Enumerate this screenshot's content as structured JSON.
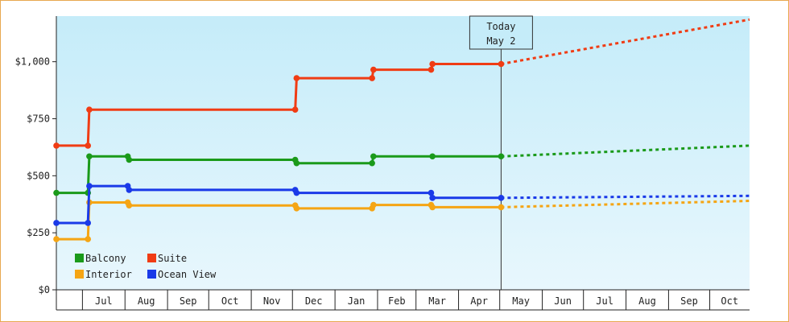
{
  "chart_data": {
    "type": "line",
    "step": true,
    "y_ticks": [
      {
        "value": 0,
        "label": "$0"
      },
      {
        "value": 250,
        "label": "$250"
      },
      {
        "value": 500,
        "label": "$500"
      },
      {
        "value": 750,
        "label": "$750"
      },
      {
        "value": 1000,
        "label": "$1,000"
      }
    ],
    "ylim": [
      0,
      1200
    ],
    "xlim": [
      "2022-06-12",
      "2023-10-30"
    ],
    "x_months": [
      {
        "start": "2022-06-12",
        "end": "2022-07-01",
        "label": ""
      },
      {
        "start": "2022-07-01",
        "end": "2022-08-01",
        "label": "Jul"
      },
      {
        "start": "2022-08-01",
        "end": "2022-09-01",
        "label": "Aug"
      },
      {
        "start": "2022-09-01",
        "end": "2022-10-01",
        "label": "Sep"
      },
      {
        "start": "2022-10-01",
        "end": "2022-11-01",
        "label": "Oct"
      },
      {
        "start": "2022-11-01",
        "end": "2022-12-01",
        "label": "Nov"
      },
      {
        "start": "2022-12-01",
        "end": "2023-01-01",
        "label": "Dec"
      },
      {
        "start": "2023-01-01",
        "end": "2023-02-01",
        "label": "Jan"
      },
      {
        "start": "2023-02-01",
        "end": "2023-03-01",
        "label": "Feb"
      },
      {
        "start": "2023-03-01",
        "end": "2023-04-01",
        "label": "Mar"
      },
      {
        "start": "2023-04-01",
        "end": "2023-05-01",
        "label": "Apr"
      },
      {
        "start": "2023-05-01",
        "end": "2023-06-01",
        "label": "May"
      },
      {
        "start": "2023-06-01",
        "end": "2023-07-01",
        "label": "Jun"
      },
      {
        "start": "2023-07-01",
        "end": "2023-08-01",
        "label": "Jul"
      },
      {
        "start": "2023-08-01",
        "end": "2023-09-01",
        "label": "Aug"
      },
      {
        "start": "2023-09-01",
        "end": "2023-10-01",
        "label": "Sep"
      },
      {
        "start": "2023-10-01",
        "end": "2023-10-30",
        "label": "Oct"
      }
    ],
    "today": {
      "date": "2023-05-02",
      "label_line1": "Today",
      "label_line2": "May 2"
    },
    "legend_position": "bottom-left",
    "series": [
      {
        "name": "Balcony",
        "color": "#1a9a1a",
        "points": [
          [
            "2022-06-12",
            425
          ],
          [
            "2022-07-05",
            425
          ],
          [
            "2022-07-06",
            585
          ],
          [
            "2022-08-03",
            585
          ],
          [
            "2022-08-04",
            570
          ],
          [
            "2022-12-03",
            570
          ],
          [
            "2022-12-04",
            555
          ],
          [
            "2023-01-28",
            555
          ],
          [
            "2023-01-29",
            585
          ],
          [
            "2023-03-13",
            585
          ],
          [
            "2023-05-02",
            585
          ]
        ],
        "forecast": [
          [
            "2023-05-02",
            585
          ],
          [
            "2023-10-30",
            632
          ]
        ]
      },
      {
        "name": "Suite",
        "color": "#f03c14",
        "points": [
          [
            "2022-06-12",
            632
          ],
          [
            "2022-07-05",
            632
          ],
          [
            "2022-07-06",
            790
          ],
          [
            "2022-12-03",
            790
          ],
          [
            "2022-12-04",
            928
          ],
          [
            "2023-01-28",
            928
          ],
          [
            "2023-01-29",
            965
          ],
          [
            "2023-03-12",
            965
          ],
          [
            "2023-03-13",
            990
          ],
          [
            "2023-05-02",
            990
          ]
        ],
        "forecast": [
          [
            "2023-05-02",
            990
          ],
          [
            "2023-10-30",
            1185
          ]
        ]
      },
      {
        "name": "Interior",
        "color": "#f5a514",
        "points": [
          [
            "2022-06-12",
            222
          ],
          [
            "2022-07-05",
            222
          ],
          [
            "2022-07-06",
            383
          ],
          [
            "2022-08-03",
            383
          ],
          [
            "2022-08-04",
            370
          ],
          [
            "2022-12-03",
            370
          ],
          [
            "2022-12-04",
            357
          ],
          [
            "2023-01-28",
            357
          ],
          [
            "2023-01-29",
            372
          ],
          [
            "2023-03-12",
            372
          ],
          [
            "2023-03-13",
            362
          ],
          [
            "2023-05-02",
            362
          ]
        ],
        "forecast": [
          [
            "2023-05-02",
            362
          ],
          [
            "2023-10-30",
            390
          ]
        ]
      },
      {
        "name": "Ocean View",
        "color": "#1a3ae8",
        "points": [
          [
            "2022-06-12",
            293
          ],
          [
            "2022-07-05",
            293
          ],
          [
            "2022-07-06",
            455
          ],
          [
            "2022-08-03",
            455
          ],
          [
            "2022-08-04",
            438
          ],
          [
            "2022-12-03",
            438
          ],
          [
            "2022-12-04",
            425
          ],
          [
            "2023-03-12",
            425
          ],
          [
            "2023-03-13",
            403
          ],
          [
            "2023-05-02",
            403
          ]
        ],
        "forecast": [
          [
            "2023-05-02",
            403
          ],
          [
            "2023-10-30",
            412
          ]
        ]
      }
    ]
  }
}
